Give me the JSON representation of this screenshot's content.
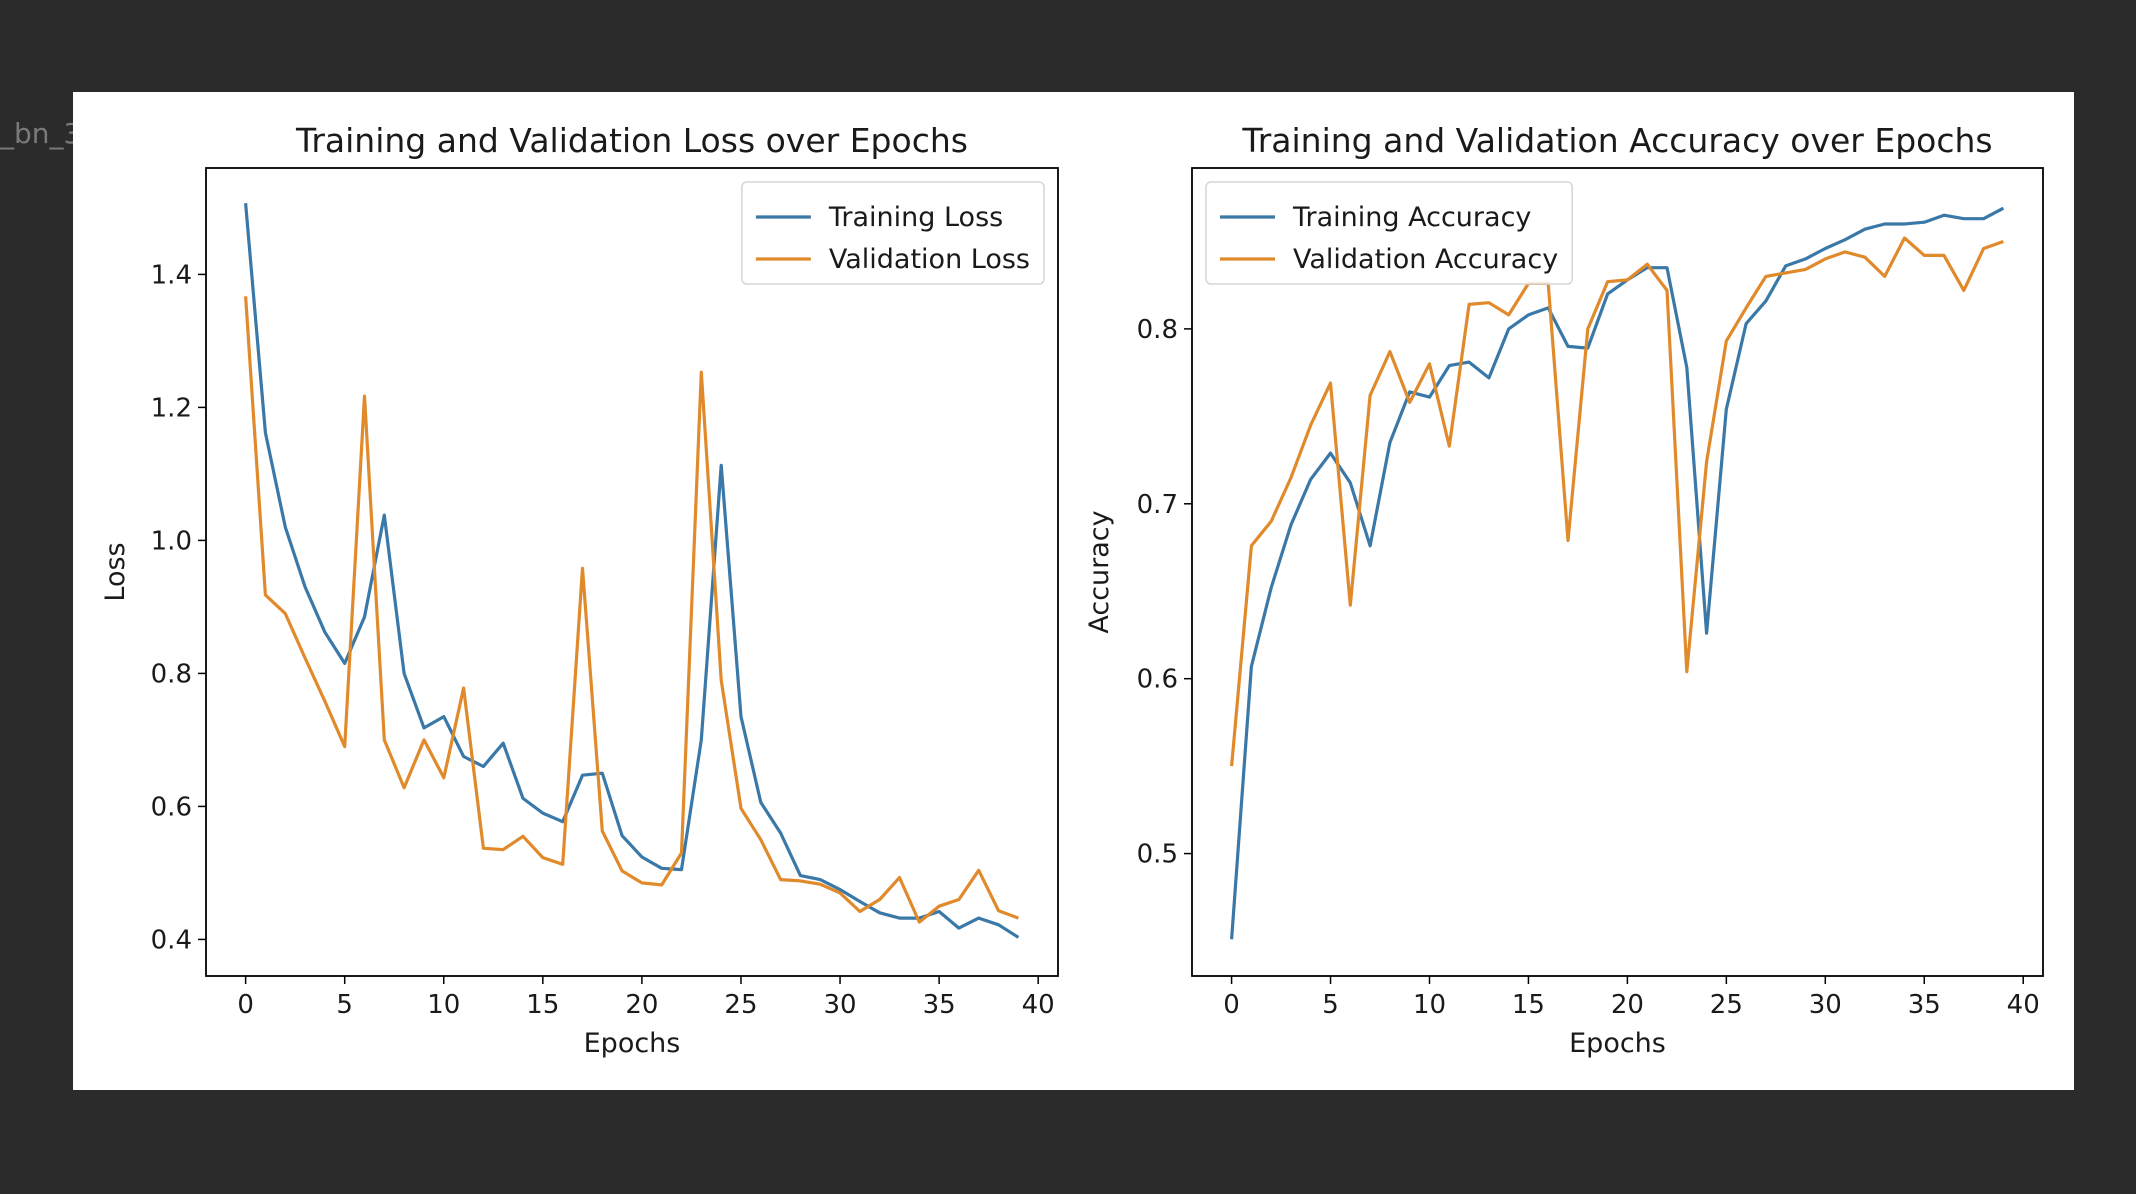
{
  "background_label": "_bn_3",
  "colors": {
    "training": "#3a78a8",
    "validation": "#e08a2c",
    "page_background": "#2b2b2b"
  },
  "chart_data": [
    {
      "type": "line",
      "title": "Training and Validation Loss over Epochs",
      "xlabel": "Epochs",
      "ylabel": "Loss",
      "xlim": [
        -2,
        41
      ],
      "ylim": [
        0.345,
        1.56
      ],
      "xticks": [
        0,
        5,
        10,
        15,
        20,
        25,
        30,
        35,
        40
      ],
      "yticks": [
        0.4,
        0.6,
        0.8,
        1.0,
        1.2,
        1.4
      ],
      "ytick_labels": [
        "0.4",
        "0.6",
        "0.8",
        "1.0",
        "1.2",
        "1.4"
      ],
      "legend_position": "top-right",
      "x": [
        0,
        1,
        2,
        3,
        4,
        5,
        6,
        7,
        8,
        9,
        10,
        11,
        12,
        13,
        14,
        15,
        16,
        17,
        18,
        19,
        20,
        21,
        22,
        23,
        24,
        25,
        26,
        27,
        28,
        29,
        30,
        31,
        32,
        33,
        34,
        35,
        36,
        37,
        38,
        39
      ],
      "series": [
        {
          "name": "Training Loss",
          "values": [
            1.507,
            1.162,
            1.02,
            0.93,
            0.862,
            0.815,
            0.885,
            1.038,
            0.8,
            0.718,
            0.735,
            0.675,
            0.66,
            0.695,
            0.612,
            0.59,
            0.577,
            0.647,
            0.65,
            0.556,
            0.524,
            0.507,
            0.505,
            0.7,
            1.113,
            0.735,
            0.606,
            0.56,
            0.496,
            0.49,
            0.475,
            0.457,
            0.44,
            0.432,
            0.432,
            0.442,
            0.417,
            0.432,
            0.422,
            0.403
          ]
        },
        {
          "name": "Validation Loss",
          "values": [
            1.367,
            0.918,
            0.89,
            0.823,
            0.758,
            0.69,
            1.217,
            0.7,
            0.628,
            0.7,
            0.643,
            0.778,
            0.537,
            0.535,
            0.555,
            0.523,
            0.513,
            0.958,
            0.563,
            0.503,
            0.485,
            0.482,
            0.53,
            1.253,
            0.79,
            0.597,
            0.55,
            0.49,
            0.488,
            0.483,
            0.47,
            0.442,
            0.46,
            0.493,
            0.426,
            0.45,
            0.46,
            0.504,
            0.443,
            0.432
          ]
        }
      ]
    },
    {
      "type": "line",
      "title": "Training and Validation Accuracy over Epochs",
      "xlabel": "Epochs",
      "ylabel": "Accuracy",
      "xlim": [
        -2,
        41
      ],
      "ylim": [
        0.43,
        0.892
      ],
      "xticks": [
        0,
        5,
        10,
        15,
        20,
        25,
        30,
        35,
        40
      ],
      "yticks": [
        0.5,
        0.6,
        0.7,
        0.8
      ],
      "ytick_labels": [
        "0.5",
        "0.6",
        "0.7",
        "0.8"
      ],
      "legend_position": "top-left",
      "x": [
        0,
        1,
        2,
        3,
        4,
        5,
        6,
        7,
        8,
        9,
        10,
        11,
        12,
        13,
        14,
        15,
        16,
        17,
        18,
        19,
        20,
        21,
        22,
        23,
        24,
        25,
        26,
        27,
        28,
        29,
        30,
        31,
        32,
        33,
        34,
        35,
        36,
        37,
        38,
        39
      ],
      "series": [
        {
          "name": "Training Accuracy",
          "values": [
            0.451,
            0.607,
            0.652,
            0.688,
            0.714,
            0.729,
            0.712,
            0.676,
            0.735,
            0.764,
            0.761,
            0.779,
            0.781,
            0.772,
            0.8,
            0.808,
            0.812,
            0.79,
            0.789,
            0.82,
            0.828,
            0.835,
            0.835,
            0.778,
            0.626,
            0.754,
            0.803,
            0.816,
            0.836,
            0.84,
            0.846,
            0.851,
            0.857,
            0.86,
            0.86,
            0.861,
            0.865,
            0.863,
            0.863,
            0.869
          ]
        },
        {
          "name": "Validation Accuracy",
          "values": [
            0.55,
            0.676,
            0.69,
            0.715,
            0.745,
            0.769,
            0.642,
            0.762,
            0.787,
            0.758,
            0.78,
            0.733,
            0.814,
            0.815,
            0.808,
            0.826,
            0.826,
            0.679,
            0.8,
            0.827,
            0.828,
            0.837,
            0.822,
            0.604,
            0.724,
            0.793,
            0.812,
            0.83,
            0.832,
            0.834,
            0.84,
            0.844,
            0.841,
            0.83,
            0.852,
            0.842,
            0.842,
            0.822,
            0.846,
            0.85
          ]
        }
      ]
    }
  ]
}
